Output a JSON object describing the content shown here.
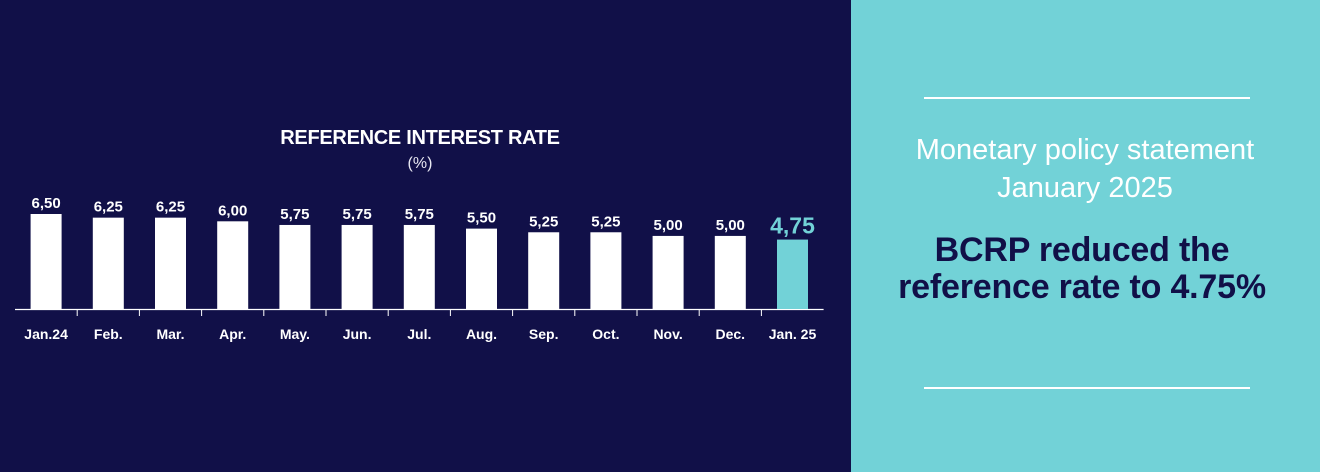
{
  "chart_data": {
    "type": "bar",
    "title": "REFERENCE INTEREST RATE",
    "subtitle": "(%)",
    "categories": [
      "Jan.24",
      "Feb.",
      "Mar.",
      "Apr.",
      "May.",
      "Jun.",
      "Jul.",
      "Aug.",
      "Sep.",
      "Oct.",
      "Nov.",
      "Dec.",
      "Jan. 25"
    ],
    "values": [
      6.5,
      6.25,
      6.25,
      6.0,
      5.75,
      5.75,
      5.75,
      5.5,
      5.25,
      5.25,
      5.0,
      5.0,
      4.75
    ],
    "value_labels": [
      "6,50",
      "6,25",
      "6,25",
      "6,00",
      "5,75",
      "5,75",
      "5,75",
      "5,50",
      "5,25",
      "5,25",
      "5,00",
      "5,00",
      "4,75"
    ],
    "highlight_index": 12,
    "colors": {
      "bar": "#ffffff",
      "highlight": "#72d2d7",
      "axis": "#ffffff",
      "background": "#111048"
    },
    "ylim": [
      0,
      6.5
    ],
    "grid": false,
    "xlabel": "",
    "ylabel": ""
  },
  "panel": {
    "statement_line1": "Monetary policy statement",
    "statement_line2": "January 2025",
    "headline": "BCRP reduced the reference rate to 4.75%",
    "background": "#72d2d7",
    "headline_color": "#111048"
  }
}
